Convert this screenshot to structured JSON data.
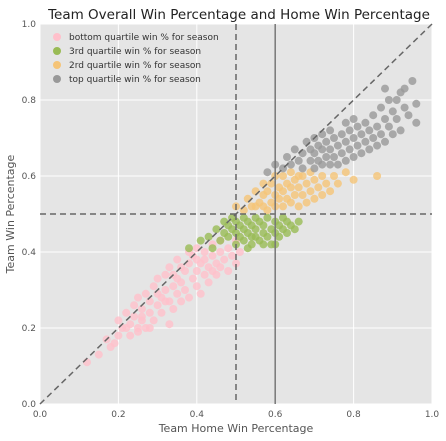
{
  "chart_data": {
    "type": "scatter",
    "title": "Team Overall Win Percentage and Home Win Percentage",
    "xlabel": "Team Home Win Percentage",
    "ylabel": "Team Win Percentage",
    "xlim": [
      0.0,
      1.0
    ],
    "ylim": [
      0.0,
      1.0
    ],
    "xticks": [
      "0.0",
      "0.2",
      "0.4",
      "0.6",
      "0.8",
      "1.0"
    ],
    "yticks": [
      "0.0",
      "0.2",
      "0.4",
      "0.6",
      "0.8",
      "1.0"
    ],
    "grid": true,
    "legend_position": "top-left",
    "background_color": "#e5e5e5",
    "reference_lines": [
      {
        "kind": "diagonal",
        "from": [
          0,
          0
        ],
        "to": [
          1,
          1
        ],
        "style": "dashed",
        "color": "#666666"
      },
      {
        "kind": "vertical",
        "x": 0.5,
        "style": "dashed",
        "color": "#666666"
      },
      {
        "kind": "horizontal",
        "y": 0.5,
        "style": "dashed",
        "color": "#666666"
      },
      {
        "kind": "vertical",
        "x": 0.6,
        "style": "solid",
        "color": "#777777"
      }
    ],
    "series": [
      {
        "name": "bottom quartile win % for season",
        "color": "#ffc0cb",
        "points": [
          [
            0.12,
            0.11
          ],
          [
            0.15,
            0.13
          ],
          [
            0.17,
            0.17
          ],
          [
            0.18,
            0.15
          ],
          [
            0.2,
            0.18
          ],
          [
            0.2,
            0.22
          ],
          [
            0.21,
            0.2
          ],
          [
            0.22,
            0.24
          ],
          [
            0.23,
            0.18
          ],
          [
            0.23,
            0.21
          ],
          [
            0.24,
            0.26
          ],
          [
            0.24,
            0.23
          ],
          [
            0.25,
            0.19
          ],
          [
            0.25,
            0.28
          ],
          [
            0.26,
            0.22
          ],
          [
            0.26,
            0.25
          ],
          [
            0.27,
            0.29
          ],
          [
            0.27,
            0.2
          ],
          [
            0.28,
            0.24
          ],
          [
            0.28,
            0.27
          ],
          [
            0.29,
            0.31
          ],
          [
            0.29,
            0.22
          ],
          [
            0.3,
            0.26
          ],
          [
            0.3,
            0.29
          ],
          [
            0.3,
            0.33
          ],
          [
            0.31,
            0.24
          ],
          [
            0.31,
            0.28
          ],
          [
            0.32,
            0.3
          ],
          [
            0.32,
            0.34
          ],
          [
            0.33,
            0.21
          ],
          [
            0.33,
            0.27
          ],
          [
            0.33,
            0.36
          ],
          [
            0.34,
            0.25
          ],
          [
            0.34,
            0.31
          ],
          [
            0.35,
            0.29
          ],
          [
            0.35,
            0.33
          ],
          [
            0.35,
            0.38
          ],
          [
            0.36,
            0.27
          ],
          [
            0.36,
            0.32
          ],
          [
            0.37,
            0.35
          ],
          [
            0.37,
            0.3
          ],
          [
            0.38,
            0.37
          ],
          [
            0.38,
            0.28
          ],
          [
            0.39,
            0.33
          ],
          [
            0.39,
            0.39
          ],
          [
            0.4,
            0.35
          ],
          [
            0.4,
            0.31
          ],
          [
            0.4,
            0.41
          ],
          [
            0.41,
            0.29
          ],
          [
            0.41,
            0.37
          ],
          [
            0.42,
            0.34
          ],
          [
            0.42,
            0.4
          ],
          [
            0.43,
            0.36
          ],
          [
            0.43,
            0.32
          ],
          [
            0.44,
            0.39
          ],
          [
            0.44,
            0.42
          ],
          [
            0.45,
            0.34
          ],
          [
            0.45,
            0.37
          ],
          [
            0.46,
            0.4
          ],
          [
            0.46,
            0.43
          ],
          [
            0.47,
            0.38
          ],
          [
            0.48,
            0.35
          ],
          [
            0.48,
            0.41
          ],
          [
            0.49,
            0.39
          ],
          [
            0.5,
            0.37
          ],
          [
            0.5,
            0.43
          ],
          [
            0.51,
            0.4
          ],
          [
            0.36,
            0.36
          ],
          [
            0.38,
            0.4
          ],
          [
            0.42,
            0.38
          ],
          [
            0.44,
            0.35
          ],
          [
            0.46,
            0.36
          ],
          [
            0.4,
            0.38
          ],
          [
            0.34,
            0.34
          ],
          [
            0.32,
            0.27
          ],
          [
            0.28,
            0.2
          ],
          [
            0.26,
            0.23
          ],
          [
            0.22,
            0.2
          ],
          [
            0.19,
            0.16
          ],
          [
            0.25,
            0.2
          ]
        ]
      },
      {
        "name": "3rd quartile win % for season",
        "color": "#99bb55",
        "points": [
          [
            0.38,
            0.41
          ],
          [
            0.41,
            0.43
          ],
          [
            0.43,
            0.44
          ],
          [
            0.44,
            0.41
          ],
          [
            0.45,
            0.46
          ],
          [
            0.46,
            0.43
          ],
          [
            0.47,
            0.45
          ],
          [
            0.47,
            0.48
          ],
          [
            0.48,
            0.44
          ],
          [
            0.48,
            0.47
          ],
          [
            0.49,
            0.46
          ],
          [
            0.49,
            0.49
          ],
          [
            0.5,
            0.42
          ],
          [
            0.5,
            0.45
          ],
          [
            0.5,
            0.48
          ],
          [
            0.51,
            0.44
          ],
          [
            0.51,
            0.47
          ],
          [
            0.52,
            0.43
          ],
          [
            0.52,
            0.46
          ],
          [
            0.52,
            0.49
          ],
          [
            0.53,
            0.45
          ],
          [
            0.53,
            0.48
          ],
          [
            0.54,
            0.42
          ],
          [
            0.54,
            0.47
          ],
          [
            0.55,
            0.44
          ],
          [
            0.55,
            0.46
          ],
          [
            0.55,
            0.49
          ],
          [
            0.56,
            0.43
          ],
          [
            0.56,
            0.48
          ],
          [
            0.57,
            0.45
          ],
          [
            0.57,
            0.47
          ],
          [
            0.58,
            0.44
          ],
          [
            0.58,
            0.49
          ],
          [
            0.59,
            0.46
          ],
          [
            0.59,
            0.42
          ],
          [
            0.6,
            0.45
          ],
          [
            0.6,
            0.48
          ],
          [
            0.61,
            0.44
          ],
          [
            0.61,
            0.47
          ],
          [
            0.62,
            0.46
          ],
          [
            0.62,
            0.49
          ],
          [
            0.63,
            0.45
          ],
          [
            0.63,
            0.48
          ],
          [
            0.64,
            0.47
          ],
          [
            0.65,
            0.46
          ],
          [
            0.66,
            0.48
          ],
          [
            0.54,
            0.44
          ],
          [
            0.53,
            0.41
          ],
          [
            0.57,
            0.42
          ],
          [
            0.6,
            0.42
          ]
        ]
      },
      {
        "name": "2rd quartile win % for season",
        "color": "#f5c477",
        "points": [
          [
            0.5,
            0.52
          ],
          [
            0.52,
            0.51
          ],
          [
            0.53,
            0.54
          ],
          [
            0.54,
            0.52
          ],
          [
            0.55,
            0.56
          ],
          [
            0.56,
            0.53
          ],
          [
            0.57,
            0.55
          ],
          [
            0.57,
            0.58
          ],
          [
            0.58,
            0.51
          ],
          [
            0.58,
            0.56
          ],
          [
            0.59,
            0.53
          ],
          [
            0.59,
            0.58
          ],
          [
            0.6,
            0.52
          ],
          [
            0.6,
            0.55
          ],
          [
            0.6,
            0.6
          ],
          [
            0.61,
            0.54
          ],
          [
            0.61,
            0.57
          ],
          [
            0.62,
            0.52
          ],
          [
            0.62,
            0.56
          ],
          [
            0.62,
            0.6
          ],
          [
            0.63,
            0.54
          ],
          [
            0.63,
            0.58
          ],
          [
            0.64,
            0.53
          ],
          [
            0.64,
            0.57
          ],
          [
            0.64,
            0.61
          ],
          [
            0.65,
            0.55
          ],
          [
            0.65,
            0.59
          ],
          [
            0.66,
            0.52
          ],
          [
            0.66,
            0.57
          ],
          [
            0.67,
            0.55
          ],
          [
            0.67,
            0.6
          ],
          [
            0.68,
            0.53
          ],
          [
            0.68,
            0.58
          ],
          [
            0.69,
            0.56
          ],
          [
            0.69,
            0.61
          ],
          [
            0.7,
            0.54
          ],
          [
            0.7,
            0.59
          ],
          [
            0.71,
            0.57
          ],
          [
            0.72,
            0.55
          ],
          [
            0.72,
            0.6
          ],
          [
            0.73,
            0.58
          ],
          [
            0.74,
            0.56
          ],
          [
            0.75,
            0.6
          ],
          [
            0.76,
            0.58
          ],
          [
            0.78,
            0.61
          ],
          [
            0.8,
            0.59
          ],
          [
            0.86,
            0.6
          ],
          [
            0.55,
            0.52
          ],
          [
            0.57,
            0.52
          ],
          [
            0.66,
            0.6
          ]
        ]
      },
      {
        "name": "top quartile win % for season",
        "color": "#999999",
        "points": [
          [
            0.58,
            0.61
          ],
          [
            0.6,
            0.63
          ],
          [
            0.62,
            0.62
          ],
          [
            0.63,
            0.65
          ],
          [
            0.64,
            0.63
          ],
          [
            0.65,
            0.67
          ],
          [
            0.66,
            0.64
          ],
          [
            0.67,
            0.62
          ],
          [
            0.67,
            0.66
          ],
          [
            0.68,
            0.69
          ],
          [
            0.69,
            0.64
          ],
          [
            0.69,
            0.67
          ],
          [
            0.7,
            0.62
          ],
          [
            0.7,
            0.66
          ],
          [
            0.7,
            0.7
          ],
          [
            0.71,
            0.64
          ],
          [
            0.71,
            0.68
          ],
          [
            0.72,
            0.63
          ],
          [
            0.72,
            0.67
          ],
          [
            0.72,
            0.71
          ],
          [
            0.73,
            0.65
          ],
          [
            0.73,
            0.69
          ],
          [
            0.74,
            0.63
          ],
          [
            0.74,
            0.67
          ],
          [
            0.74,
            0.72
          ],
          [
            0.75,
            0.65
          ],
          [
            0.75,
            0.7
          ],
          [
            0.76,
            0.63
          ],
          [
            0.76,
            0.68
          ],
          [
            0.77,
            0.66
          ],
          [
            0.77,
            0.71
          ],
          [
            0.78,
            0.64
          ],
          [
            0.78,
            0.69
          ],
          [
            0.78,
            0.74
          ],
          [
            0.79,
            0.67
          ],
          [
            0.79,
            0.72
          ],
          [
            0.8,
            0.65
          ],
          [
            0.8,
            0.7
          ],
          [
            0.8,
            0.75
          ],
          [
            0.81,
            0.68
          ],
          [
            0.81,
            0.73
          ],
          [
            0.82,
            0.66
          ],
          [
            0.82,
            0.71
          ],
          [
            0.83,
            0.69
          ],
          [
            0.83,
            0.74
          ],
          [
            0.84,
            0.67
          ],
          [
            0.84,
            0.72
          ],
          [
            0.85,
            0.7
          ],
          [
            0.85,
            0.76
          ],
          [
            0.86,
            0.68
          ],
          [
            0.86,
            0.73
          ],
          [
            0.87,
            0.71
          ],
          [
            0.87,
            0.78
          ],
          [
            0.88,
            0.69
          ],
          [
            0.88,
            0.75
          ],
          [
            0.89,
            0.73
          ],
          [
            0.89,
            0.8
          ],
          [
            0.9,
            0.71
          ],
          [
            0.9,
            0.77
          ],
          [
            0.91,
            0.75
          ],
          [
            0.92,
            0.82
          ],
          [
            0.92,
            0.72
          ],
          [
            0.93,
            0.78
          ],
          [
            0.94,
            0.76
          ],
          [
            0.95,
            0.85
          ],
          [
            0.96,
            0.79
          ],
          [
            0.96,
            0.74
          ],
          [
            0.93,
            0.83
          ],
          [
            0.91,
            0.8
          ],
          [
            0.88,
            0.83
          ]
        ]
      }
    ]
  }
}
